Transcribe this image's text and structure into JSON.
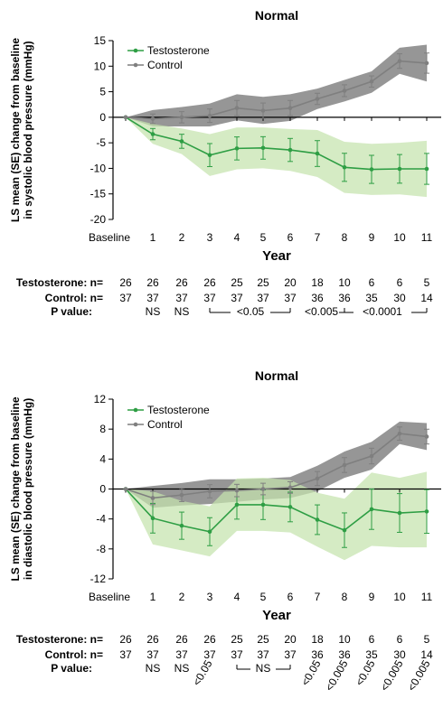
{
  "chart_data": [
    {
      "type": "line",
      "title": "Normal",
      "xlabel": "Year",
      "ylabel": "LS mean (SE) change from baseline in systolic blood pressure (mmHg)",
      "ylim": [
        -20,
        15
      ],
      "yticks": [
        15,
        10,
        5,
        0,
        -5,
        -10,
        -15,
        -20
      ],
      "categories": [
        "Baseline",
        "1",
        "2",
        "3",
        "4",
        "5",
        "6",
        "7",
        "8",
        "9",
        "10",
        "11"
      ],
      "series": [
        {
          "name": "Testosterone",
          "color": "#2e9e44",
          "values": [
            0,
            -3.3,
            -4.7,
            -7.4,
            -6.1,
            -6.0,
            -6.4,
            -7.1,
            -9.8,
            -10.2,
            -10.1,
            -10.1
          ],
          "lower": [
            0,
            -5.2,
            -7.2,
            -11.5,
            -10.2,
            -10.0,
            -10.5,
            -11.7,
            -14.8,
            -15.2,
            -15.1,
            -15.6
          ],
          "upper": [
            0,
            -1.3,
            -2.2,
            -3.3,
            -2.0,
            -2.0,
            -2.3,
            -2.5,
            -4.8,
            -5.2,
            -5.0,
            -4.6
          ]
        },
        {
          "name": "Control",
          "color": "#7f7f7f",
          "values": [
            0,
            -0.3,
            0.0,
            0.3,
            1.8,
            1.3,
            1.8,
            3.6,
            5.2,
            7.0,
            11.0,
            10.6
          ],
          "lower": [
            0,
            -1.8,
            -1.8,
            -1.8,
            -0.6,
            -1.3,
            -0.7,
            1.6,
            3.1,
            4.8,
            8.5,
            7.0
          ],
          "upper": [
            0,
            1.4,
            2.0,
            2.7,
            4.5,
            4.0,
            4.5,
            5.6,
            7.3,
            9.0,
            13.6,
            14.2
          ]
        }
      ],
      "legend": "top-left",
      "table": {
        "testosterone_label": "Testosterone: n=",
        "control_label": "Control: n=",
        "pvalue_label": "P value:",
        "testosterone_n": [
          "26",
          "26",
          "26",
          "26",
          "25",
          "25",
          "20",
          "18",
          "10",
          "6",
          "6",
          "5"
        ],
        "control_n": [
          "37",
          "37",
          "37",
          "37",
          "37",
          "37",
          "37",
          "36",
          "36",
          "35",
          "30",
          "14"
        ],
        "pvalues": [
          "NS",
          "NS",
          "<0.05",
          "<0.005",
          "<0.0001"
        ]
      }
    },
    {
      "type": "line",
      "title": "Normal",
      "xlabel": "Year",
      "ylabel": "LS mean (SE) change from baseline in diastolic blood pressure (mmHg)",
      "ylim": [
        -12,
        12
      ],
      "yticks": [
        12,
        8,
        4,
        0,
        -4,
        -8,
        -12
      ],
      "categories": [
        "Baseline",
        "1",
        "2",
        "3",
        "4",
        "5",
        "6",
        "7",
        "8",
        "9",
        "10",
        "11"
      ],
      "series": [
        {
          "name": "Testosterone",
          "color": "#2e9e44",
          "values": [
            0,
            -3.9,
            -4.9,
            -5.7,
            -2.1,
            -2.1,
            -2.4,
            -4.1,
            -5.5,
            -2.7,
            -3.2,
            -3.0
          ],
          "lower": [
            0,
            -7.4,
            -8.2,
            -9.0,
            -5.6,
            -5.6,
            -5.8,
            -7.7,
            -9.5,
            -7.6,
            -7.8,
            -7.8
          ],
          "upper": [
            0,
            -0.3,
            -1.6,
            -2.3,
            1.4,
            1.5,
            1.2,
            -0.5,
            -1.3,
            2.2,
            1.5,
            2.3
          ]
        },
        {
          "name": "Control",
          "color": "#7f7f7f",
          "values": [
            0,
            -1.2,
            -0.8,
            -0.3,
            -0.2,
            0.0,
            0.2,
            1.4,
            3.2,
            4.4,
            7.4,
            7.0
          ],
          "lower": [
            0,
            -2.5,
            -2.2,
            -2.0,
            -1.7,
            -1.4,
            -1.2,
            -0.3,
            1.5,
            2.6,
            6.0,
            5.2
          ],
          "upper": [
            0,
            0.4,
            0.8,
            1.3,
            1.3,
            1.4,
            1.6,
            3.1,
            5.0,
            6.3,
            9.0,
            8.8
          ]
        }
      ],
      "legend": "top-left",
      "table": {
        "testosterone_label": "Testosterone: n=",
        "control_label": "Control: n=",
        "pvalue_label": "P value:",
        "testosterone_n": [
          "26",
          "26",
          "26",
          "26",
          "25",
          "25",
          "20",
          "18",
          "10",
          "6",
          "6",
          "5"
        ],
        "control_n": [
          "37",
          "37",
          "37",
          "37",
          "37",
          "37",
          "37",
          "36",
          "36",
          "35",
          "30",
          "14"
        ],
        "pvalues": [
          "NS",
          "NS",
          "<0.05",
          "NS",
          "<0.05",
          "<0.005",
          "<0.05",
          "<0.005",
          "<0.005"
        ]
      }
    }
  ]
}
